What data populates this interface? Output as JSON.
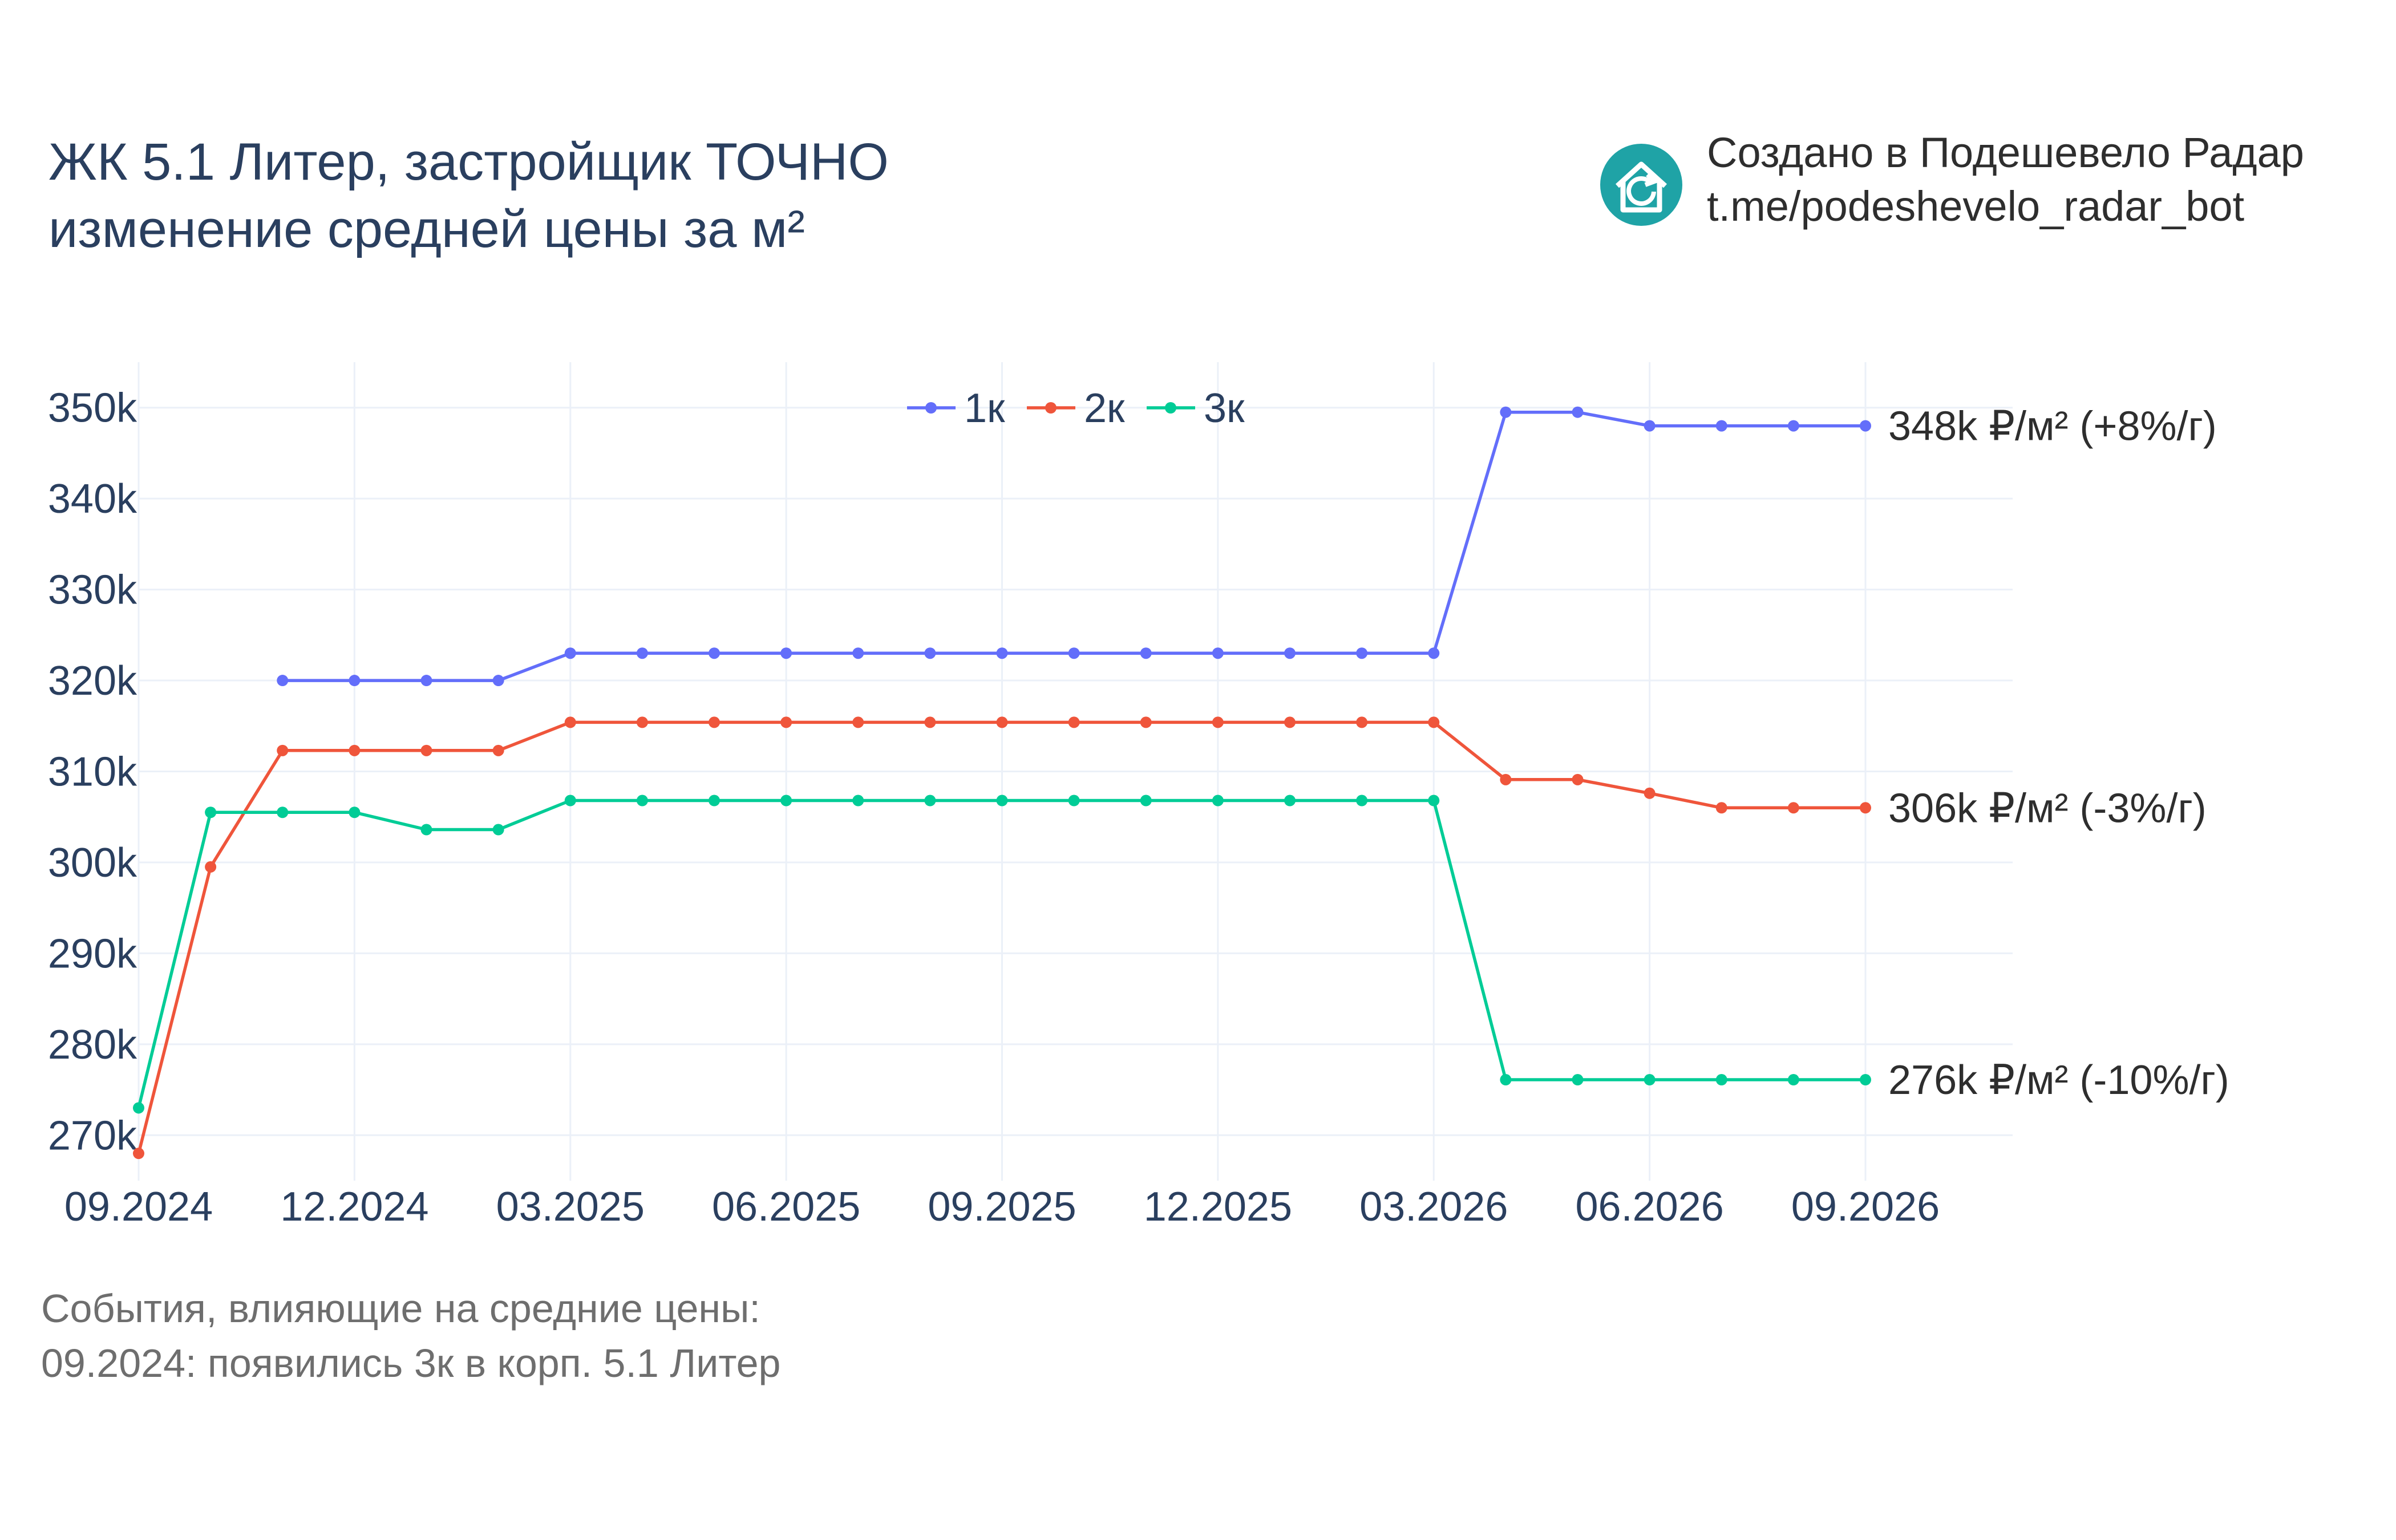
{
  "header": {
    "title_line1": "ЖК 5.1 Литер, застройщик ТОЧНО",
    "title_line2": "изменение средней цены за м²",
    "brand_line1": "Создано в Подешевело Радар",
    "brand_line2": "t.me/podeshevelo_radar_bot",
    "brand_icon": "house-refresh-icon"
  },
  "events": {
    "heading": "События, влияющие на средние цены:",
    "items": [
      "09.2024: появились 3к в корп. 5.1 Литер"
    ]
  },
  "chart_data": {
    "type": "line",
    "x": [
      "09.2024",
      "10.2024",
      "11.2024",
      "12.2024",
      "01.2025",
      "02.2025",
      "03.2025",
      "04.2025",
      "05.2025",
      "06.2025",
      "07.2025",
      "08.2025",
      "09.2025",
      "10.2025",
      "11.2025",
      "12.2025",
      "01.2026",
      "02.2026",
      "03.2026",
      "04.2026",
      "05.2026",
      "06.2026",
      "07.2026",
      "08.2026",
      "09.2026"
    ],
    "x_tick_labels": [
      "09.2024",
      "12.2024",
      "03.2025",
      "06.2025",
      "09.2025",
      "12.2025",
      "03.2026",
      "06.2026",
      "09.2026"
    ],
    "y_tick_labels": [
      "270k",
      "280k",
      "290k",
      "300k",
      "310k",
      "320k",
      "330k",
      "340k",
      "350k"
    ],
    "y_ticks": [
      270000,
      280000,
      290000,
      300000,
      310000,
      320000,
      330000,
      340000,
      350000
    ],
    "ylim": [
      265000,
      355000
    ],
    "grid": true,
    "legend_placement": "top-center",
    "series": [
      {
        "name": "1к",
        "color": "#636efa",
        "values": [
          null,
          null,
          320000,
          320000,
          320000,
          320000,
          323000,
          323000,
          323000,
          323000,
          323000,
          323000,
          323000,
          323000,
          323000,
          323000,
          323000,
          323000,
          323000,
          349500,
          349500,
          348000,
          348000,
          348000,
          348000
        ],
        "end_label": "348k ₽/м² (+8%/г)"
      },
      {
        "name": "2к",
        "color": "#ef553b",
        "values": [
          268000,
          299500,
          312300,
          312300,
          312300,
          312300,
          315400,
          315400,
          315400,
          315400,
          315400,
          315400,
          315400,
          315400,
          315400,
          315400,
          315400,
          315400,
          315400,
          309100,
          309100,
          307600,
          306000,
          306000,
          306000
        ],
        "end_label": "306k ₽/м² (-3%/г)"
      },
      {
        "name": "3к",
        "color": "#00cc96",
        "values": [
          273000,
          305500,
          305500,
          305500,
          303600,
          303600,
          306800,
          306800,
          306800,
          306800,
          306800,
          306800,
          306800,
          306800,
          306800,
          306800,
          306800,
          306800,
          306800,
          276100,
          276100,
          276100,
          276100,
          276100,
          276100
        ],
        "end_label": "276k ₽/м² (-10%/г)"
      }
    ]
  }
}
